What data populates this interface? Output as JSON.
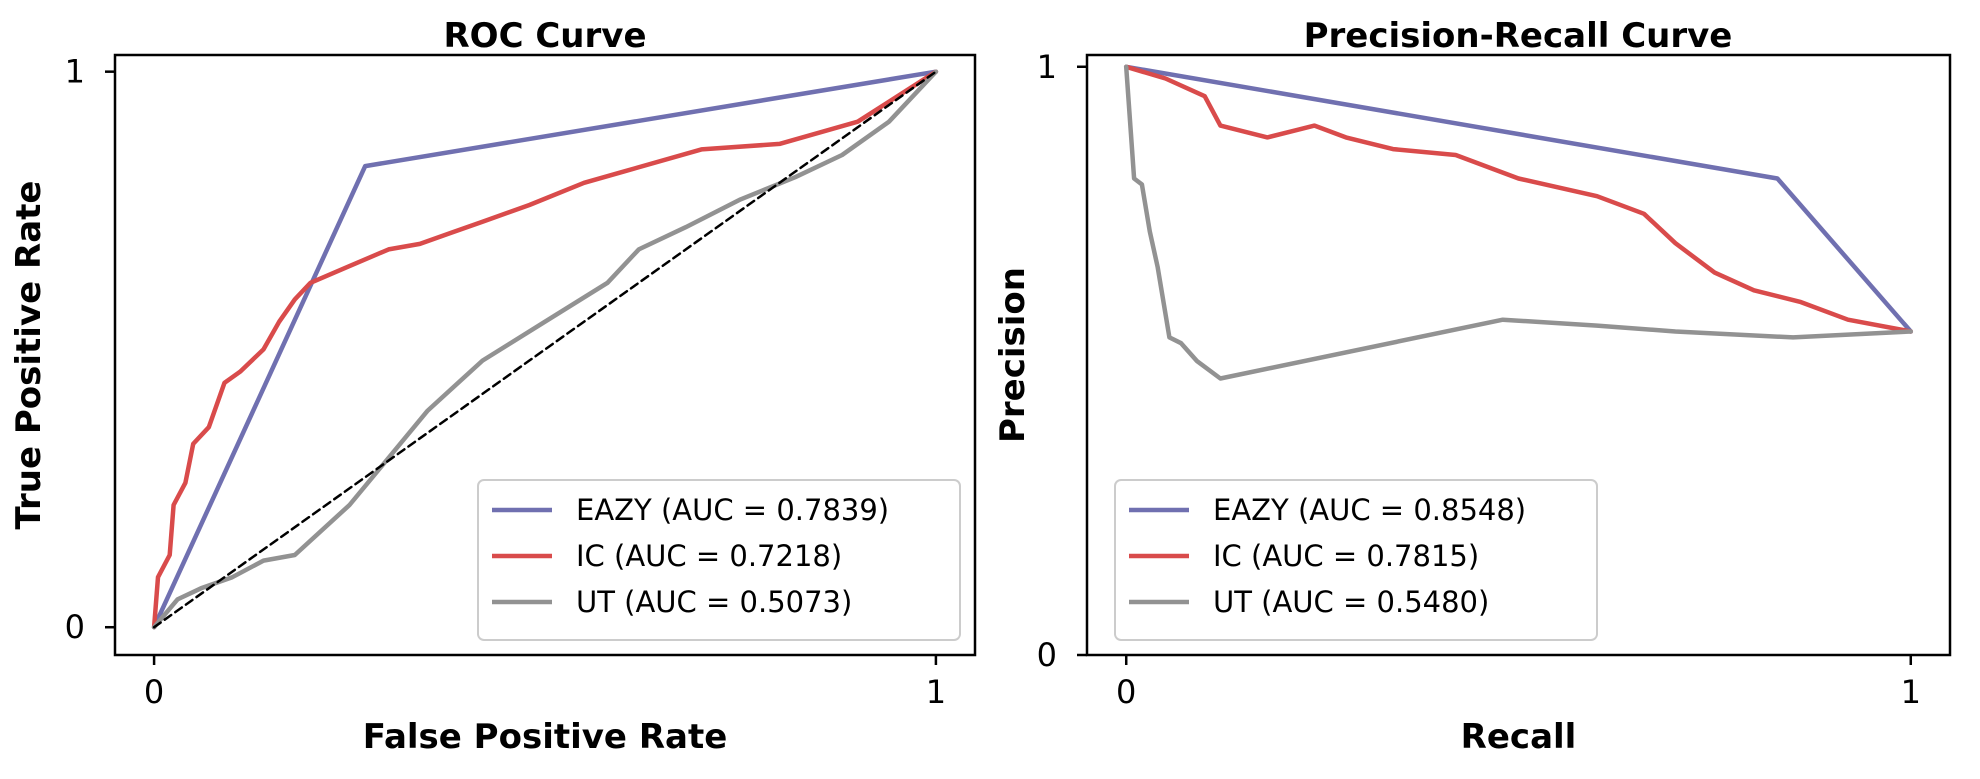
{
  "chart_data": [
    {
      "type": "line",
      "title": "ROC Curve",
      "xlabel": "False Positive Rate",
      "ylabel": "True Positive Rate",
      "xlim": [
        -0.05,
        1.05
      ],
      "ylim": [
        -0.05,
        1.03
      ],
      "xticks": [
        "0",
        "1"
      ],
      "yticks": [
        "0",
        "1"
      ],
      "legend_position": "lower-right",
      "series": [
        {
          "name": "EAZY",
          "legend_label": "EAZY (AUC = 0.7839)",
          "color": "#7070b0",
          "points": [
            [
              0,
              0
            ],
            [
              0.27,
              0.83
            ],
            [
              1,
              1
            ]
          ]
        },
        {
          "name": "IC",
          "legend_label": "IC (AUC = 0.7218)",
          "color": "#d94b4b",
          "points": [
            [
              0,
              0
            ],
            [
              0.005,
              0.09
            ],
            [
              0.02,
              0.13
            ],
            [
              0.025,
              0.22
            ],
            [
              0.04,
              0.26
            ],
            [
              0.05,
              0.33
            ],
            [
              0.07,
              0.36
            ],
            [
              0.09,
              0.44
            ],
            [
              0.11,
              0.46
            ],
            [
              0.14,
              0.5
            ],
            [
              0.16,
              0.55
            ],
            [
              0.18,
              0.59
            ],
            [
              0.2,
              0.62
            ],
            [
              0.25,
              0.65
            ],
            [
              0.3,
              0.68
            ],
            [
              0.34,
              0.69
            ],
            [
              0.38,
              0.71
            ],
            [
              0.42,
              0.73
            ],
            [
              0.48,
              0.76
            ],
            [
              0.55,
              0.8
            ],
            [
              0.6,
              0.82
            ],
            [
              0.7,
              0.86
            ],
            [
              0.8,
              0.87
            ],
            [
              0.9,
              0.91
            ],
            [
              1,
              1
            ]
          ]
        },
        {
          "name": "UT",
          "legend_label": "UT (AUC = 0.5073)",
          "color": "#929292",
          "points": [
            [
              0,
              0
            ],
            [
              0.03,
              0.05
            ],
            [
              0.06,
              0.07
            ],
            [
              0.1,
              0.09
            ],
            [
              0.14,
              0.12
            ],
            [
              0.18,
              0.13
            ],
            [
              0.25,
              0.22
            ],
            [
              0.35,
              0.39
            ],
            [
              0.42,
              0.48
            ],
            [
              0.5,
              0.55
            ],
            [
              0.58,
              0.62
            ],
            [
              0.62,
              0.68
            ],
            [
              0.68,
              0.72
            ],
            [
              0.75,
              0.77
            ],
            [
              0.82,
              0.81
            ],
            [
              0.88,
              0.85
            ],
            [
              0.94,
              0.91
            ],
            [
              1,
              1
            ]
          ]
        },
        {
          "name": "Chance",
          "legend_label": "",
          "color": "#000000",
          "dashed": true,
          "points": [
            [
              0,
              0
            ],
            [
              1,
              1
            ]
          ]
        }
      ]
    },
    {
      "type": "line",
      "title": "Precision-Recall Curve",
      "xlabel": "Recall",
      "ylabel": "Precision",
      "xlim": [
        -0.05,
        1.05
      ],
      "ylim": [
        0,
        1.02
      ],
      "xticks": [
        "0",
        "1"
      ],
      "yticks": [
        "0",
        "1"
      ],
      "legend_position": "lower-left",
      "series": [
        {
          "name": "EAZY",
          "legend_label": "EAZY (AUC = 0.8548)",
          "color": "#7070b0",
          "points": [
            [
              0,
              1
            ],
            [
              0.83,
              0.81
            ],
            [
              1,
              0.55
            ]
          ]
        },
        {
          "name": "IC",
          "legend_label": "IC (AUC = 0.7815)",
          "color": "#d94b4b",
          "points": [
            [
              0,
              1
            ],
            [
              0.05,
              0.98
            ],
            [
              0.1,
              0.95
            ],
            [
              0.12,
              0.9
            ],
            [
              0.18,
              0.88
            ],
            [
              0.24,
              0.9
            ],
            [
              0.28,
              0.88
            ],
            [
              0.34,
              0.86
            ],
            [
              0.42,
              0.85
            ],
            [
              0.5,
              0.81
            ],
            [
              0.6,
              0.78
            ],
            [
              0.66,
              0.75
            ],
            [
              0.7,
              0.7
            ],
            [
              0.75,
              0.65
            ],
            [
              0.8,
              0.62
            ],
            [
              0.86,
              0.6
            ],
            [
              0.92,
              0.57
            ],
            [
              1,
              0.55
            ]
          ]
        },
        {
          "name": "UT",
          "legend_label": "UT (AUC = 0.5480)",
          "color": "#929292",
          "points": [
            [
              0,
              1
            ],
            [
              0.01,
              0.81
            ],
            [
              0.02,
              0.8
            ],
            [
              0.03,
              0.72
            ],
            [
              0.04,
              0.66
            ],
            [
              0.055,
              0.54
            ],
            [
              0.07,
              0.53
            ],
            [
              0.09,
              0.5
            ],
            [
              0.12,
              0.47
            ],
            [
              0.48,
              0.57
            ],
            [
              0.6,
              0.56
            ],
            [
              0.7,
              0.55
            ],
            [
              0.85,
              0.54
            ],
            [
              1,
              0.55
            ]
          ]
        }
      ]
    }
  ]
}
